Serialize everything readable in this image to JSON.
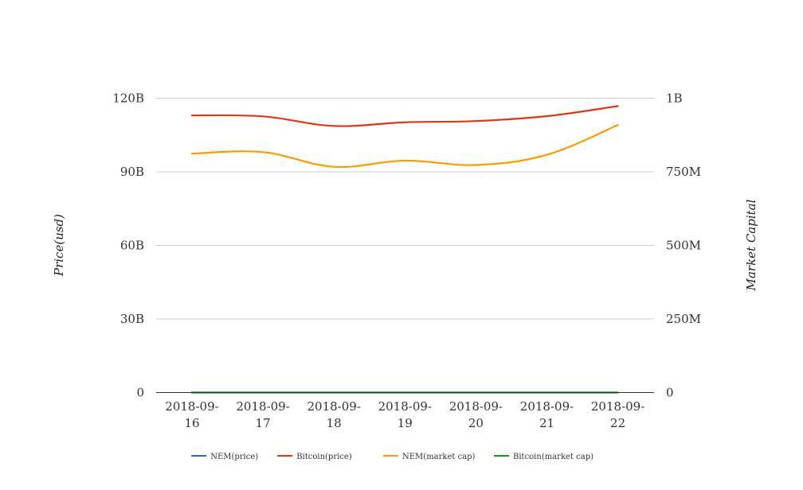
{
  "chart_data": {
    "type": "line",
    "categories": [
      "2018-09-16",
      "2018-09-17",
      "2018-09-18",
      "2018-09-19",
      "2018-09-20",
      "2018-09-21",
      "2018-09-22"
    ],
    "x_tick_labels": [
      [
        "2018-09-",
        "16"
      ],
      [
        "2018-09-",
        "17"
      ],
      [
        "2018-09-",
        "18"
      ],
      [
        "2018-09-",
        "19"
      ],
      [
        "2018-09-",
        "20"
      ],
      [
        "2018-09-",
        "21"
      ],
      [
        "2018-09-",
        "22"
      ]
    ],
    "ylabel": "Price(usd)",
    "ylabel_right": "Market Capital",
    "y_left": {
      "ticks": [
        0,
        30000000000,
        60000000000,
        90000000000,
        120000000000
      ],
      "tick_labels": [
        "0",
        "30B",
        "60B",
        "90B",
        "120B"
      ],
      "ylim": [
        0,
        120000000000
      ]
    },
    "y_right": {
      "ticks": [
        0,
        250000000,
        500000000,
        750000000,
        1000000000
      ],
      "tick_labels": [
        "0",
        "250M",
        "500M",
        "750M",
        "1B"
      ],
      "ylim": [
        0,
        1000000000
      ]
    },
    "grid": true,
    "legend_position": "bottom",
    "series": [
      {
        "name": "NEM(price)",
        "axis": "left",
        "color": "#3366cc",
        "values": [
          0.09,
          0.09,
          0.09,
          0.09,
          0.09,
          0.09,
          0.09
        ]
      },
      {
        "name": "Bitcoin(price)",
        "axis": "left",
        "color": "#dc3912",
        "values": [
          113000000000,
          112600000000,
          108700000000,
          110200000000,
          110700000000,
          112700000000,
          116800000000
        ]
      },
      {
        "name": "NEM(market cap)",
        "axis": "right",
        "color": "#ff9900",
        "values": [
          812000000,
          817000000,
          767000000,
          788000000,
          773000000,
          808000000,
          909000000
        ]
      },
      {
        "name": "Bitcoin(market cap)",
        "axis": "right",
        "color": "#109618",
        "values": [
          110000,
          110000,
          108000,
          109000,
          110000,
          112000,
          116000
        ]
      }
    ]
  }
}
